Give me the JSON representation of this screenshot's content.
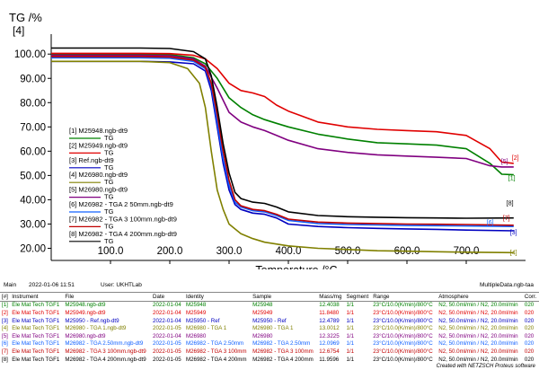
{
  "chart_data": {
    "type": "line",
    "ylabel": "TG /%",
    "ylabel_index": "[4]",
    "xlabel": "Temperature /°C",
    "xlim": [
      0,
      800
    ],
    "ylim": [
      15,
      106
    ],
    "x_ticks": [
      "100.0",
      "200.0",
      "300.0",
      "400.0",
      "500.0",
      "600.0",
      "700.0"
    ],
    "y_ticks": [
      "20.00",
      "30.00",
      "40.00",
      "50.00",
      "60.00",
      "70.00",
      "80.00",
      "90.00",
      "100.00"
    ],
    "series": [
      {
        "name": "M25948.ngb-dt9",
        "index": "[1]",
        "color": "#008000",
        "end_label": "[1]",
        "x": [
          0,
          150,
          200,
          240,
          260,
          280,
          300,
          320,
          340,
          360,
          380,
          400,
          450,
          500,
          550,
          600,
          650,
          700,
          740,
          760,
          780
        ],
        "y": [
          100,
          100,
          99.8,
          98.5,
          96,
          90,
          82,
          78,
          75,
          73,
          71.5,
          70,
          67,
          65,
          63.5,
          63,
          62.5,
          61,
          55,
          50.5,
          50.3
        ]
      },
      {
        "name": "M25949.ngb-dt9",
        "index": "[2]",
        "color": "#e00000",
        "end_label": "[2]",
        "x": [
          0,
          150,
          200,
          240,
          260,
          280,
          300,
          320,
          340,
          360,
          380,
          400,
          450,
          500,
          550,
          600,
          650,
          700,
          740,
          760,
          780
        ],
        "y": [
          100.3,
          100.3,
          100.2,
          99.5,
          98,
          94,
          88,
          85,
          84,
          82.5,
          79,
          76.5,
          72,
          70,
          69,
          68.5,
          68,
          66.5,
          61,
          55.5,
          55
        ]
      },
      {
        "name": "Ref.ngb-dt9",
        "index": "[3]",
        "color": "#0000c0",
        "end_label": "[3]",
        "x": [
          0,
          150,
          200,
          240,
          260,
          270,
          280,
          290,
          300,
          310,
          320,
          340,
          360,
          380,
          400,
          450,
          500,
          550,
          600,
          650,
          700,
          780
        ],
        "y": [
          97,
          97,
          96.8,
          96,
          93,
          85,
          70,
          55,
          44,
          38,
          36,
          34.5,
          34,
          32.5,
          30,
          29,
          28.5,
          28.2,
          28,
          27.8,
          27.5,
          27.2
        ]
      },
      {
        "name": "M26980.ngb-dt9",
        "index": "[4]",
        "color": "#808000",
        "end_label": "[4]",
        "x": [
          0,
          150,
          200,
          230,
          250,
          260,
          270,
          280,
          290,
          300,
          320,
          340,
          360,
          400,
          450,
          500,
          550,
          600,
          650,
          700,
          780
        ],
        "y": [
          97,
          97,
          96.5,
          94,
          88,
          78,
          60,
          44,
          36,
          30,
          26,
          24,
          22.5,
          21,
          20,
          19.5,
          19,
          18.8,
          18.6,
          18.4,
          18.2
        ]
      },
      {
        "name": "M26980.ngb-dt9",
        "index": "[5]",
        "color": "#800080",
        "end_label": "[5]",
        "x": [
          0,
          150,
          200,
          240,
          260,
          280,
          300,
          320,
          340,
          360,
          380,
          400,
          450,
          500,
          550,
          600,
          650,
          700,
          740,
          760,
          780
        ],
        "y": [
          99.5,
          99.5,
          99.3,
          98,
          95,
          86,
          76,
          72,
          70,
          68.5,
          66.5,
          64.5,
          61,
          59.5,
          58.5,
          58,
          57.5,
          57,
          54,
          53.5,
          53.5
        ]
      },
      {
        "name": "M26982 - TGA 2 50mm.ngb-dt9",
        "index": "[6]",
        "color": "#1060ff",
        "end_label": "[6]",
        "x": [
          0,
          150,
          200,
          240,
          260,
          270,
          280,
          290,
          300,
          310,
          320,
          340,
          360,
          380,
          400,
          450,
          500,
          550,
          600,
          650,
          700,
          780
        ],
        "y": [
          98.5,
          98.5,
          98.3,
          97,
          94,
          87,
          72,
          57,
          46,
          39,
          37,
          35.5,
          35,
          33.5,
          31.5,
          30.2,
          29.8,
          29.6,
          29.4,
          29.3,
          29.2,
          29
        ]
      },
      {
        "name": "M26982 - TGA 3 100mm.ngb-dt9",
        "index": "[7]",
        "color": "#c00000",
        "end_label": "[7]",
        "x": [
          0,
          150,
          200,
          240,
          260,
          270,
          280,
          290,
          300,
          310,
          320,
          340,
          360,
          380,
          400,
          450,
          500,
          550,
          600,
          650,
          700,
          780
        ],
        "y": [
          99,
          99,
          98.8,
          97.5,
          94.5,
          88,
          75,
          60,
          48,
          40,
          37.5,
          36,
          35.5,
          34,
          32,
          30.8,
          30.4,
          30.2,
          30,
          29.9,
          29.8,
          29.5
        ]
      },
      {
        "name": "M26982 - TGA 4 200mm.ngb-dt9",
        "index": "[8]",
        "color": "#000000",
        "end_label": "[8]",
        "x": [
          0,
          150,
          200,
          240,
          260,
          270,
          280,
          290,
          300,
          310,
          320,
          340,
          360,
          380,
          400,
          450,
          500,
          550,
          600,
          650,
          700,
          780
        ],
        "y": [
          102.5,
          102.5,
          102.3,
          101,
          98,
          91,
          78,
          63,
          51,
          43,
          40.5,
          39,
          38.5,
          37,
          35,
          33.5,
          33,
          32.8,
          32.6,
          32.5,
          32.4,
          32.5
        ]
      }
    ],
    "legend_series_suffix": "TG",
    "legend_position": "left-middle",
    "grid": false
  },
  "status": {
    "main": "Main",
    "datetime": "2022-01-06 11:51",
    "user": "User: UKHTLab",
    "file": "MultipleData.ngb-taa"
  },
  "table": {
    "headers": [
      "[#]",
      "Instrument",
      "File",
      "Date",
      "Identity",
      "Sample",
      "Mass/mg",
      "Segment",
      "Range",
      "Atmosphere",
      "Corr."
    ],
    "rows": [
      {
        "color": "#008000",
        "cells": [
          "[1]",
          "Ele Mat Tech TGF1",
          "M25948.ngb-dt9",
          "2022-01-04",
          "M25948",
          "M25948",
          "12.4038",
          "1/1",
          "23°C/10.0(K/min)/800°C",
          "N2, 50.0ml/min / N2, 20.0ml/min",
          "020"
        ]
      },
      {
        "color": "#e00000",
        "cells": [
          "[2]",
          "Ele Mat Tech TGF1",
          "M25949.ngb-dt9",
          "2022-01-04",
          "M25949",
          "M25949",
          "11.8480",
          "1/1",
          "23°C/10.0(K/min)/800°C",
          "N2, 50.0ml/min / N2, 20.0ml/min",
          "020"
        ]
      },
      {
        "color": "#0000c0",
        "cells": [
          "[3]",
          "Ele Mat Tech TGF1",
          "M25950 - Ref.ngb-dt9",
          "2022-01-04",
          "M25950 - Ref",
          "M25950 - Ref",
          "12.4789",
          "1/1",
          "23°C/10.0(K/min)/800°C",
          "N2, 50.0ml/min / N2, 20.0ml/min",
          "020"
        ]
      },
      {
        "color": "#808000",
        "cells": [
          "[4]",
          "Ele Mat Tech TGF1",
          "M26980 - TGA 1.ngb-dt9",
          "2022-01-05",
          "M26980 - TGA 1",
          "M26980 - TGA 1",
          "13.0012",
          "1/1",
          "23°C/10.0(K/min)/800°C",
          "N2, 50.0ml/min / N2, 20.0ml/min",
          "020"
        ]
      },
      {
        "color": "#800080",
        "cells": [
          "[5]",
          "Ele Mat Tech TGF1",
          "M26980.ngb-dt9",
          "2022-01-04",
          "M26980",
          "M26980",
          "12.3225",
          "1/1",
          "23°C/10.0(K/min)/800°C",
          "N2, 50.0ml/min / N2, 20.0ml/min",
          "020"
        ]
      },
      {
        "color": "#1060ff",
        "cells": [
          "[6]",
          "Ele Mat Tech TGF1",
          "M26982 - TGA 2.50mm.ngb-dt9",
          "2022-01-05",
          "M26982 - TGA 2.50mm",
          "M26982 - TGA 2.50mm",
          "12.0969",
          "1/1",
          "23°C/10.0(K/min)/800°C",
          "N2, 50.0ml/min / N2, 20.0ml/min",
          "020"
        ]
      },
      {
        "color": "#c00000",
        "cells": [
          "[7]",
          "Ele Mat Tech TGF1",
          "M26982 - TGA 3 100mm.ngb-dt9",
          "2022-01-05",
          "M26982 - TGA 3 100mm",
          "M26982 - TGA 3 100mm",
          "12.6754",
          "1/1",
          "23°C/10.0(K/min)/800°C",
          "N2, 50.0ml/min / N2, 20.0ml/min",
          "020"
        ]
      },
      {
        "color": "#000000",
        "cells": [
          "[8]",
          "Ele Mat Tech TGF1",
          "M26982 - TGA 4 200mm.ngb-dt9",
          "2022-01-05",
          "M26982 - TGA 4 200mm",
          "M26982 - TGA 4 200mm",
          "11.9596",
          "1/1",
          "23°C/10.0(K/min)/800°C",
          "N2, 50.0ml/min / N2, 20.0ml/min",
          "020"
        ]
      }
    ]
  },
  "footer": "Created with NETZSCH Proteus software"
}
